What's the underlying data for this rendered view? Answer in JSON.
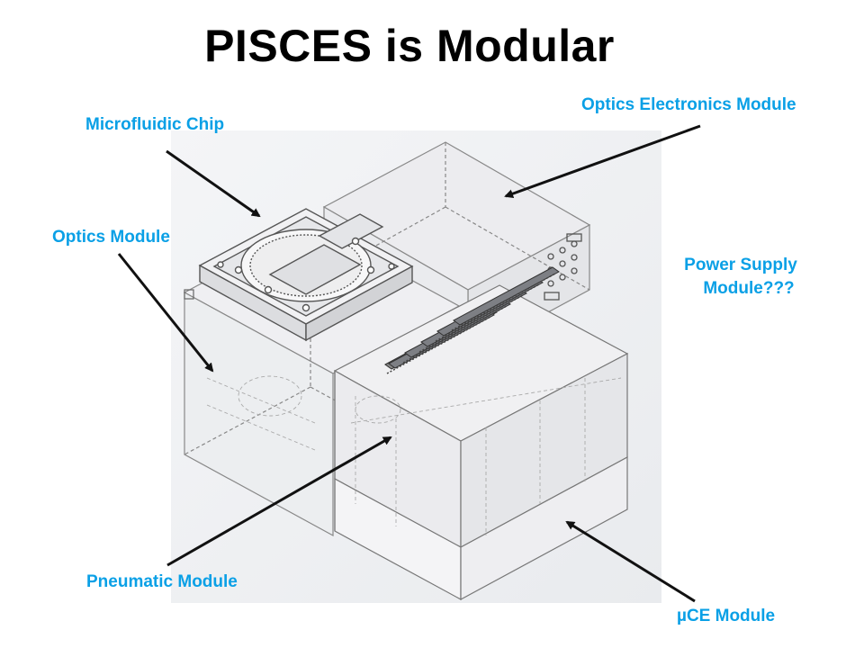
{
  "title": "PISCES is Modular",
  "labels": {
    "microfluidic_chip": "Microfluidic Chip",
    "optics_electronics": "Optics Electronics Module",
    "optics_module": "Optics Module",
    "power_supply_line1": "Power Supply",
    "power_supply_line2": "Module???",
    "pneumatic_module": "Pneumatic Module",
    "uce_module": "µCE Module"
  },
  "colors": {
    "label": "#0aa0e6",
    "title": "#000000",
    "arrow": "#111111"
  }
}
